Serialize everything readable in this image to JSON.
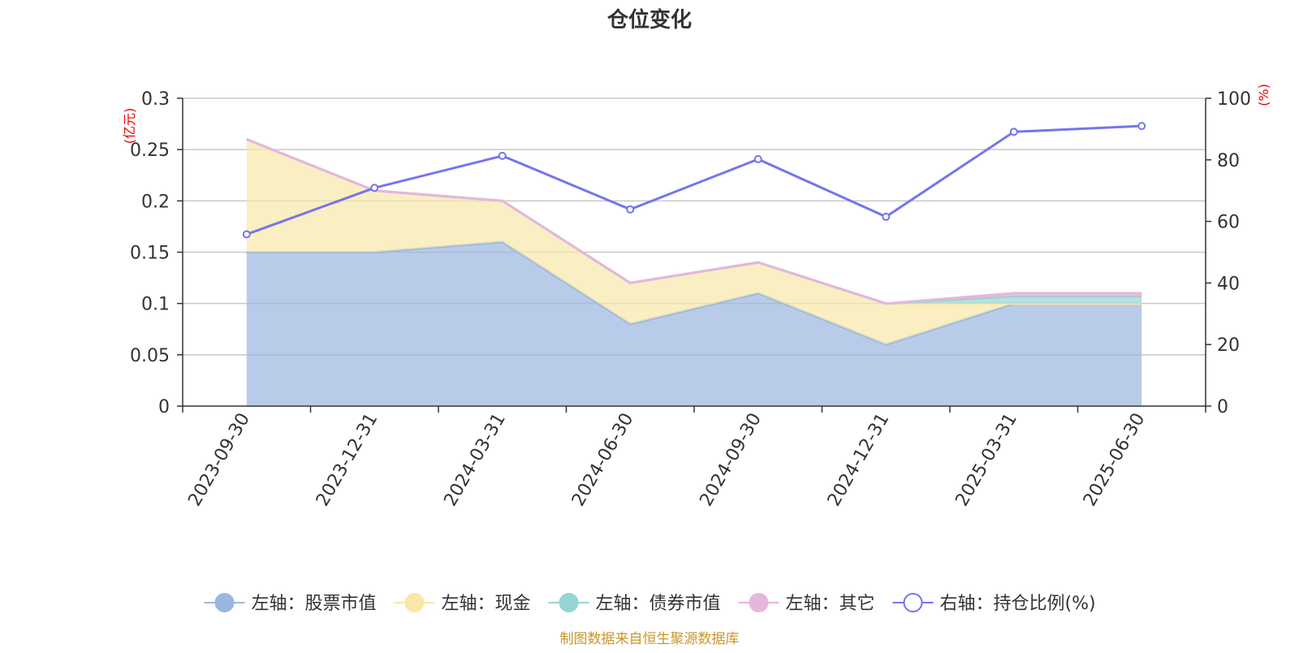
{
  "chart_data": {
    "type": "area",
    "title": "仓位变化",
    "left_axis_unit": "(亿元)",
    "right_axis_unit": "(%)",
    "categories": [
      "2023-09-30",
      "2023-12-31",
      "2024-03-31",
      "2024-06-30",
      "2024-09-30",
      "2024-12-31",
      "2025-03-31",
      "2025-06-30"
    ],
    "left_ylim": [
      0,
      0.3
    ],
    "left_ticks": [
      "0",
      "0.05",
      "0.1",
      "0.15",
      "0.2",
      "0.25",
      "0.3"
    ],
    "right_ylim": [
      0,
      100
    ],
    "right_ticks": [
      "0",
      "20",
      "40",
      "60",
      "80",
      "100"
    ],
    "stacked_series": [
      {
        "name": "左轴：股票市值",
        "axis": "left",
        "color": "#9ab7e1",
        "values": [
          0.15,
          0.15,
          0.16,
          0.08,
          0.11,
          0.06,
          0.1,
          0.1
        ]
      },
      {
        "name": "左轴：现金",
        "axis": "left",
        "color": "#f8e7a9",
        "values": [
          0.11,
          0.06,
          0.04,
          0.04,
          0.03,
          0.04,
          0.0,
          0.0
        ]
      },
      {
        "name": "左轴：债券市值",
        "axis": "left",
        "color": "#96d4d4",
        "values": [
          0,
          0,
          0,
          0,
          0,
          0,
          0.007,
          0.007
        ]
      },
      {
        "name": "左轴：其它",
        "axis": "left",
        "color": "#e5b6dc",
        "values": [
          0,
          0,
          0,
          0,
          0,
          0,
          0.003,
          0.003
        ]
      }
    ],
    "line_series": {
      "name": "右轴：持仓比例(%)",
      "axis": "right",
      "color": "#7575ec",
      "values": [
        55.8,
        70.9,
        81.3,
        63.9,
        80.2,
        61.5,
        89.1,
        91.0
      ]
    },
    "grid": true,
    "legend_position": "bottom-center",
    "source_note": "制图数据来自恒生聚源数据库"
  }
}
